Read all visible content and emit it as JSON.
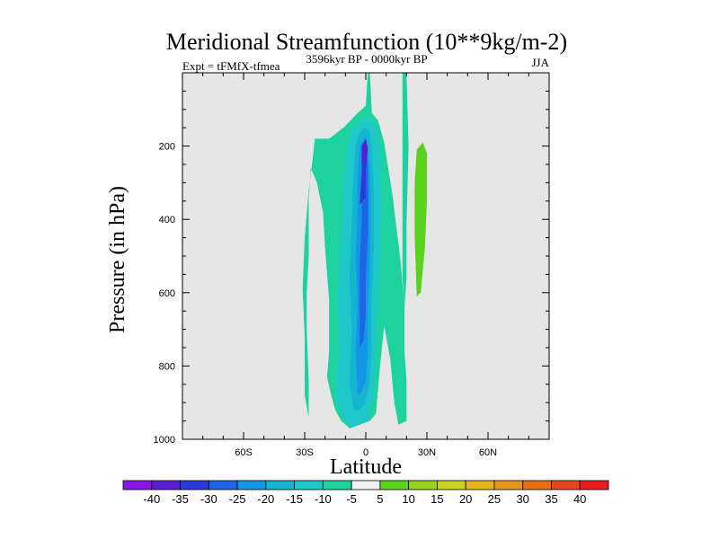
{
  "chart_data": {
    "type": "contour",
    "title": "Meridional Streamfunction (10**9kg/m-2)",
    "left_annotation": "Expt = tFMfX-tfmea",
    "center_annotation": "3596kyr BP - 0000kyr BP",
    "right_annotation": "JJA",
    "xlabel": "Latitude",
    "ylabel": "Pressure (in hPa)",
    "xlim": [
      -90,
      90
    ],
    "ylim": [
      1000,
      0
    ],
    "x_ticks": [
      {
        "value": -60,
        "label": "60S"
      },
      {
        "value": -30,
        "label": "30S"
      },
      {
        "value": 0,
        "label": "0"
      },
      {
        "value": 30,
        "label": "30N"
      },
      {
        "value": 60,
        "label": "60N"
      }
    ],
    "y_ticks": [
      {
        "value": 200,
        "label": "200"
      },
      {
        "value": 400,
        "label": "400"
      },
      {
        "value": 600,
        "label": "600"
      },
      {
        "value": 800,
        "label": "800"
      },
      {
        "value": 1000,
        "label": "1000"
      }
    ],
    "background_color": "#e6e6e6",
    "colorbar": {
      "levels": [
        "-40",
        "-35",
        "-30",
        "-25",
        "-20",
        "-15",
        "-10",
        "-5",
        "5",
        "10",
        "15",
        "20",
        "25",
        "30",
        "35",
        "40"
      ],
      "colors": [
        "#8a16e6",
        "#5a1ed2",
        "#2c38d8",
        "#1e64e6",
        "#1496e6",
        "#14b4d2",
        "#1ec8c8",
        "#1ed2a0",
        "#f0f0f0",
        "#5ad21e",
        "#96d21e",
        "#c8d21e",
        "#e6b41e",
        "#e6961e",
        "#e66e14",
        "#e6461e",
        "#e61e1e"
      ]
    },
    "regions": [
      {
        "level": "-10..-5",
        "color": "#1ed2a0",
        "points": [
          [
            -26,
            1000
          ],
          [
            -28,
            940
          ],
          [
            -30,
            880
          ],
          [
            -30,
            720
          ],
          [
            -31,
            590
          ],
          [
            -30,
            450
          ],
          [
            -28,
            320
          ],
          [
            -26,
            230
          ],
          [
            -25,
            180
          ],
          [
            -18,
            180
          ],
          [
            -11,
            150
          ],
          [
            -4,
            110
          ],
          [
            0,
            90
          ],
          [
            1,
            0
          ],
          [
            2,
            0
          ],
          [
            3,
            110
          ],
          [
            6,
            130
          ],
          [
            9,
            190
          ],
          [
            13,
            330
          ],
          [
            17,
            510
          ],
          [
            19,
            640
          ],
          [
            19,
            760
          ],
          [
            20,
            840
          ],
          [
            20,
            950
          ],
          [
            16,
            960
          ],
          [
            14,
            900
          ],
          [
            12,
            780
          ],
          [
            9,
            690
          ],
          [
            7,
            800
          ],
          [
            5,
            930
          ],
          [
            2,
            950
          ],
          [
            -3,
            960
          ],
          [
            -8,
            970
          ],
          [
            -12,
            950
          ],
          [
            -15,
            920
          ],
          [
            -17,
            880
          ],
          [
            -19,
            830
          ],
          [
            -18,
            760
          ],
          [
            -18,
            620
          ],
          [
            -20,
            480
          ],
          [
            -21,
            380
          ],
          [
            -24,
            300
          ],
          [
            -27,
            260
          ],
          [
            -28,
            340
          ],
          [
            -28,
            500
          ],
          [
            -29,
            600
          ],
          [
            -29,
            700
          ],
          [
            -28,
            840
          ],
          [
            -28,
            940
          ]
        ]
      },
      {
        "level": "-10..-5",
        "color": "#1ed2a0",
        "points": [
          [
            18,
            0
          ],
          [
            20,
            0
          ],
          [
            21,
            200
          ],
          [
            20,
            420
          ],
          [
            20,
            560
          ],
          [
            19,
            640
          ],
          [
            18,
            560
          ],
          [
            18,
            420
          ],
          [
            18,
            200
          ]
        ]
      },
      {
        "level": "-15..-10",
        "color": "#1ec8c8",
        "points": [
          [
            -8,
            970
          ],
          [
            -12,
            930
          ],
          [
            -15,
            880
          ],
          [
            -13,
            760
          ],
          [
            -14,
            600
          ],
          [
            -12,
            450
          ],
          [
            -11,
            320
          ],
          [
            -10,
            240
          ],
          [
            -8,
            170
          ],
          [
            -3,
            135
          ],
          [
            0,
            125
          ],
          [
            3,
            130
          ],
          [
            6,
            160
          ],
          [
            7,
            240
          ],
          [
            8,
            360
          ],
          [
            7,
            500
          ],
          [
            6,
            640
          ],
          [
            5,
            760
          ],
          [
            4,
            880
          ],
          [
            1,
            950
          ],
          [
            -3,
            960
          ]
        ]
      },
      {
        "level": "-20..-15",
        "color": "#14b4d2",
        "points": [
          [
            -6,
            920
          ],
          [
            -8,
            840
          ],
          [
            -7,
            700
          ],
          [
            -8,
            560
          ],
          [
            -7,
            420
          ],
          [
            -6,
            290
          ],
          [
            -5,
            200
          ],
          [
            -3,
            160
          ],
          [
            0,
            150
          ],
          [
            2,
            160
          ],
          [
            3,
            230
          ],
          [
            4,
            330
          ],
          [
            4,
            470
          ],
          [
            3,
            600
          ],
          [
            3,
            720
          ],
          [
            2,
            840
          ],
          [
            0,
            900
          ],
          [
            -3,
            920
          ]
        ]
      },
      {
        "level": "-25..-20",
        "color": "#1496e6",
        "points": [
          [
            -4,
            880
          ],
          [
            -5,
            760
          ],
          [
            -4,
            620
          ],
          [
            -5,
            500
          ],
          [
            -4,
            380
          ],
          [
            -4,
            280
          ],
          [
            -3,
            200
          ],
          [
            0,
            175
          ],
          [
            1,
            205
          ],
          [
            2,
            290
          ],
          [
            2,
            400
          ],
          [
            2,
            520
          ],
          [
            1,
            640
          ],
          [
            1,
            760
          ],
          [
            0,
            840
          ],
          [
            -2,
            870
          ]
        ]
      },
      {
        "level": "-30..-25",
        "color": "#1e64e6",
        "points": [
          [
            -3,
            750
          ],
          [
            -3,
            640
          ],
          [
            -3,
            520
          ],
          [
            -2,
            400
          ],
          [
            -2,
            300
          ],
          [
            -2,
            210
          ],
          [
            0,
            200
          ],
          [
            1,
            250
          ],
          [
            1,
            350
          ],
          [
            1,
            440
          ],
          [
            0,
            560
          ],
          [
            0,
            660
          ],
          [
            -1,
            730
          ]
        ]
      },
      {
        "level": "-35..-30",
        "color": "#2c38d8",
        "points": [
          [
            -3,
            360
          ],
          [
            -2,
            270
          ],
          [
            -2,
            200
          ],
          [
            0,
            180
          ],
          [
            1,
            205
          ],
          [
            0,
            270
          ],
          [
            0,
            340
          ]
        ]
      },
      {
        "level": "-40..-35",
        "color": "#5a1ed2",
        "points": [
          [
            -2,
            250
          ],
          [
            -2,
            200
          ],
          [
            0,
            185
          ],
          [
            1,
            210
          ],
          [
            0,
            240
          ]
        ]
      },
      {
        "level": "5..10",
        "color": "#5ad21e",
        "points": [
          [
            25,
            610
          ],
          [
            24,
            450
          ],
          [
            24,
            300
          ],
          [
            25,
            210
          ],
          [
            28,
            190
          ],
          [
            30,
            220
          ],
          [
            30,
            350
          ],
          [
            29,
            480
          ],
          [
            27,
            600
          ]
        ]
      }
    ]
  }
}
